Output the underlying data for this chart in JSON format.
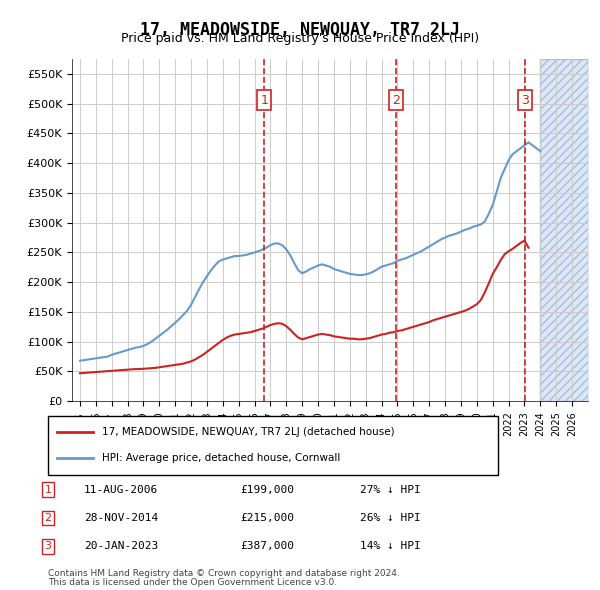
{
  "title": "17, MEADOWSIDE, NEWQUAY, TR7 2LJ",
  "subtitle": "Price paid vs. HM Land Registry's House Price Index (HPI)",
  "legend_line1": "17, MEADOWSIDE, NEWQUAY, TR7 2LJ (detached house)",
  "legend_line2": "HPI: Average price, detached house, Cornwall",
  "footer1": "Contains HM Land Registry data © Crown copyright and database right 2024.",
  "footer2": "This data is licensed under the Open Government Licence v3.0.",
  "transactions": [
    {
      "num": 1,
      "date": "11-AUG-2006",
      "price": "£199,000",
      "hpi": "27% ↓ HPI",
      "year": 2006.6
    },
    {
      "num": 2,
      "date": "28-NOV-2014",
      "price": "£215,000",
      "hpi": "26% ↓ HPI",
      "year": 2014.9
    },
    {
      "num": 3,
      "date": "20-JAN-2023",
      "price": "£387,000",
      "hpi": "14% ↓ HPI",
      "year": 2023.05
    }
  ],
  "hpi_color": "#6699cc",
  "price_color": "#cc2222",
  "vline_color": "#cc2222",
  "box_color": "#cc2222",
  "hatching_color": "#dce8f5",
  "background_color": "#ffffff",
  "grid_color": "#cccccc",
  "ylim": [
    0,
    575000
  ],
  "xlim_start": 1994.5,
  "xlim_end": 2027.0,
  "yticks": [
    0,
    50000,
    100000,
    150000,
    200000,
    250000,
    300000,
    350000,
    400000,
    450000,
    500000,
    550000
  ],
  "ytick_labels": [
    "£0",
    "£50K",
    "£100K",
    "£150K",
    "£200K",
    "£250K",
    "£300K",
    "£350K",
    "£400K",
    "£450K",
    "£500K",
    "£550K"
  ],
  "hpi_years": [
    1995.0,
    1995.25,
    1995.5,
    1995.75,
    1996.0,
    1996.25,
    1996.5,
    1996.75,
    1997.0,
    1997.25,
    1997.5,
    1997.75,
    1998.0,
    1998.25,
    1998.5,
    1998.75,
    1999.0,
    1999.25,
    1999.5,
    1999.75,
    2000.0,
    2000.25,
    2000.5,
    2000.75,
    2001.0,
    2001.25,
    2001.5,
    2001.75,
    2002.0,
    2002.25,
    2002.5,
    2002.75,
    2003.0,
    2003.25,
    2003.5,
    2003.75,
    2004.0,
    2004.25,
    2004.5,
    2004.75,
    2005.0,
    2005.25,
    2005.5,
    2005.75,
    2006.0,
    2006.25,
    2006.5,
    2006.75,
    2007.0,
    2007.25,
    2007.5,
    2007.75,
    2008.0,
    2008.25,
    2008.5,
    2008.75,
    2009.0,
    2009.25,
    2009.5,
    2009.75,
    2010.0,
    2010.25,
    2010.5,
    2010.75,
    2011.0,
    2011.25,
    2011.5,
    2011.75,
    2012.0,
    2012.25,
    2012.5,
    2012.75,
    2013.0,
    2013.25,
    2013.5,
    2013.75,
    2014.0,
    2014.25,
    2014.5,
    2014.75,
    2015.0,
    2015.25,
    2015.5,
    2015.75,
    2016.0,
    2016.25,
    2016.5,
    2016.75,
    2017.0,
    2017.25,
    2017.5,
    2017.75,
    2018.0,
    2018.25,
    2018.5,
    2018.75,
    2019.0,
    2019.25,
    2019.5,
    2019.75,
    2020.0,
    2020.25,
    2020.5,
    2020.75,
    2021.0,
    2021.25,
    2021.5,
    2021.75,
    2022.0,
    2022.25,
    2022.5,
    2022.75,
    2023.0,
    2023.25,
    2023.5,
    2023.75,
    2024.0
  ],
  "hpi_values": [
    68000,
    69000,
    70000,
    71000,
    72000,
    73000,
    74000,
    75000,
    78000,
    80000,
    82000,
    84000,
    86000,
    88000,
    90000,
    91000,
    93000,
    96000,
    100000,
    105000,
    110000,
    115000,
    120000,
    126000,
    132000,
    138000,
    145000,
    152000,
    162000,
    175000,
    188000,
    200000,
    210000,
    220000,
    228000,
    235000,
    238000,
    240000,
    242000,
    244000,
    244000,
    245000,
    246000,
    248000,
    250000,
    252000,
    255000,
    258000,
    262000,
    265000,
    265000,
    262000,
    255000,
    245000,
    232000,
    220000,
    215000,
    218000,
    222000,
    225000,
    228000,
    230000,
    228000,
    226000,
    222000,
    220000,
    218000,
    216000,
    214000,
    213000,
    212000,
    212000,
    213000,
    215000,
    218000,
    222000,
    226000,
    228000,
    230000,
    232000,
    236000,
    238000,
    240000,
    243000,
    246000,
    249000,
    252000,
    256000,
    260000,
    264000,
    268000,
    272000,
    275000,
    278000,
    280000,
    282000,
    285000,
    288000,
    290000,
    293000,
    295000,
    297000,
    302000,
    315000,
    330000,
    352000,
    375000,
    390000,
    405000,
    415000,
    420000,
    425000,
    430000,
    435000,
    430000,
    425000,
    420000
  ],
  "price_years": [
    1995.0,
    1995.25,
    1995.5,
    1995.75,
    1996.0,
    1996.25,
    1996.5,
    1996.75,
    1997.0,
    1997.25,
    1997.5,
    1997.75,
    1998.0,
    1998.25,
    1998.5,
    1998.75,
    1999.0,
    1999.25,
    1999.5,
    1999.75,
    2000.0,
    2000.25,
    2000.5,
    2000.75,
    2001.0,
    2001.25,
    2001.5,
    2001.75,
    2002.0,
    2002.25,
    2002.5,
    2002.75,
    2003.0,
    2003.25,
    2003.5,
    2003.75,
    2004.0,
    2004.25,
    2004.5,
    2004.75,
    2005.0,
    2005.25,
    2005.5,
    2005.75,
    2006.0,
    2006.25,
    2006.5,
    2006.75,
    2007.0,
    2007.25,
    2007.5,
    2007.75,
    2008.0,
    2008.25,
    2008.5,
    2008.75,
    2009.0,
    2009.25,
    2009.5,
    2009.75,
    2010.0,
    2010.25,
    2010.5,
    2010.75,
    2011.0,
    2011.25,
    2011.5,
    2011.75,
    2012.0,
    2012.25,
    2012.5,
    2012.75,
    2013.0,
    2013.25,
    2013.5,
    2013.75,
    2014.0,
    2014.25,
    2014.5,
    2014.75,
    2015.0,
    2015.25,
    2015.5,
    2015.75,
    2016.0,
    2016.25,
    2016.5,
    2016.75,
    2017.0,
    2017.25,
    2017.5,
    2017.75,
    2018.0,
    2018.25,
    2018.5,
    2018.75,
    2019.0,
    2019.25,
    2019.5,
    2019.75,
    2020.0,
    2020.25,
    2020.5,
    2020.75,
    2021.0,
    2021.25,
    2021.5,
    2021.75,
    2022.0,
    2022.25,
    2022.5,
    2022.75,
    2023.0,
    2023.25
  ],
  "price_values": [
    47000,
    47500,
    48000,
    48500,
    49000,
    49500,
    50000,
    50500,
    51000,
    51500,
    52000,
    52500,
    53000,
    53500,
    54000,
    54000,
    54500,
    55000,
    55500,
    56000,
    57000,
    58000,
    59000,
    60000,
    61000,
    62000,
    63000,
    65000,
    67000,
    70000,
    74000,
    78000,
    83000,
    88000,
    93000,
    98000,
    103000,
    107000,
    110000,
    112000,
    113000,
    114000,
    115000,
    116000,
    118000,
    120000,
    122000,
    125000,
    128000,
    130000,
    131000,
    130000,
    126000,
    120000,
    113000,
    107000,
    104000,
    106000,
    108000,
    110000,
    112000,
    113000,
    112000,
    111000,
    109000,
    108000,
    107000,
    106000,
    105000,
    105000,
    104000,
    104000,
    105000,
    106000,
    108000,
    110000,
    112000,
    113000,
    115000,
    116000,
    118000,
    119000,
    121000,
    123000,
    125000,
    127000,
    129000,
    131000,
    133000,
    136000,
    138000,
    140000,
    142000,
    144000,
    146000,
    148000,
    150000,
    152000,
    155000,
    159000,
    163000,
    170000,
    183000,
    198000,
    214000,
    225000,
    237000,
    247000,
    252000,
    256000,
    261000,
    266000,
    270000,
    258000
  ]
}
